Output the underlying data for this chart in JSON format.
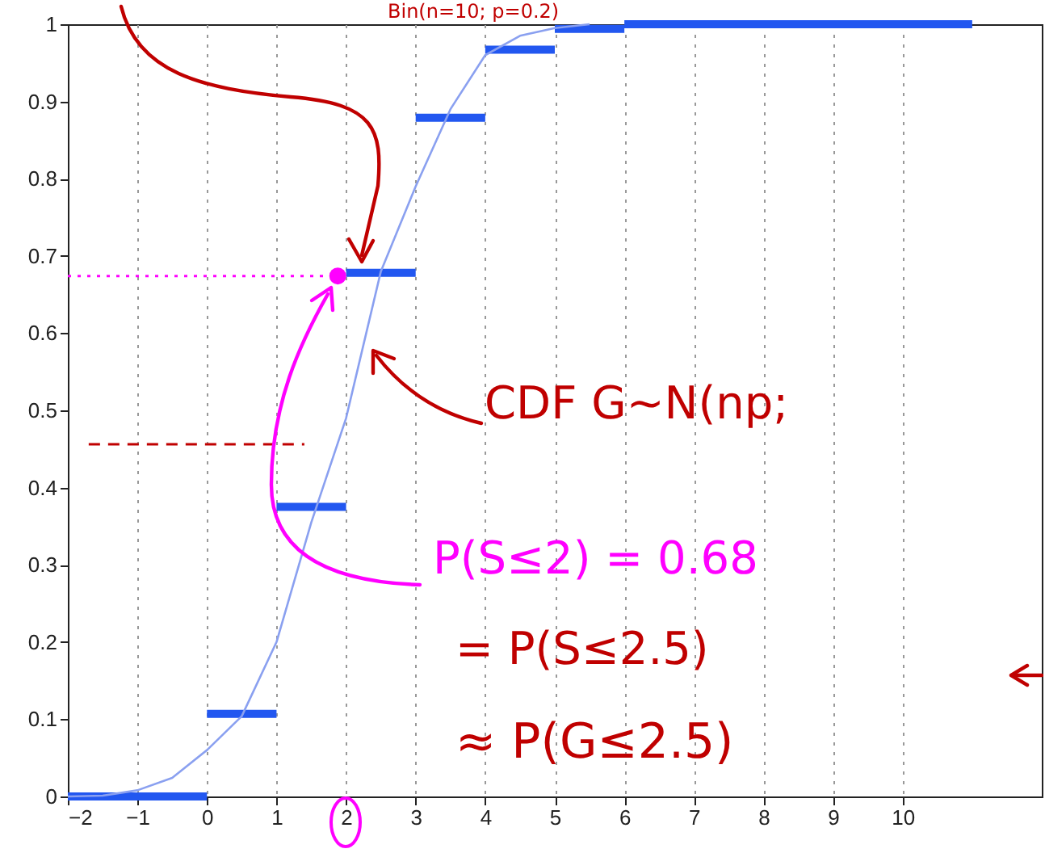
{
  "chart_data": {
    "type": "line",
    "xlim": [
      -2,
      12
    ],
    "xticks": [
      -2,
      -1,
      0,
      1,
      2,
      3,
      4,
      5,
      6,
      7,
      8,
      9,
      10
    ],
    "ylim": [
      0,
      1
    ],
    "yticks": [
      0,
      0.1,
      0.2,
      0.3,
      0.4,
      0.5,
      0.6,
      0.7,
      0.8,
      0.9,
      1
    ],
    "grid": "x",
    "series": [
      {
        "color": "#2257f0",
        "x": [
          -2,
          0,
          null,
          0,
          1,
          null,
          1,
          2,
          null,
          2,
          3,
          null,
          3,
          4,
          null,
          4,
          5,
          null,
          5,
          6,
          null,
          6,
          11
        ],
        "values": [
          0,
          0,
          null,
          0.107,
          0.107,
          null,
          0.375,
          0.375,
          null,
          0.678,
          0.678,
          null,
          0.879,
          0.879,
          null,
          0.967,
          0.967,
          null,
          0.994,
          0.994,
          null,
          1,
          1
        ]
      },
      {
        "color": "#8aa0f0",
        "x": [
          -2,
          -1.5,
          -1,
          -0.5,
          0,
          0.5,
          1,
          1.5,
          2,
          2.5,
          3,
          3.5,
          4,
          4.5,
          5,
          5.5
        ],
        "values": [
          0,
          0.001,
          0.008,
          0.024,
          0.06,
          0.104,
          0.2,
          0.355,
          0.49,
          0.68,
          0.79,
          0.89,
          0.96,
          0.985,
          0.995,
          1
        ]
      },
      {
        "type": "line",
        "color": "#ff00ff",
        "line_style": "dotted",
        "x": [
          -2,
          1.88
        ],
        "values": [
          0.674,
          0.674
        ]
      },
      {
        "type": "line",
        "color": "#c00000",
        "line_style": "dashed",
        "x": [
          -1.7,
          1.4
        ],
        "values": [
          0.456,
          0.456
        ]
      },
      {
        "type": "scatter",
        "color": "#ff00ff",
        "x": [
          1.88
        ],
        "values": [
          0.674
        ]
      }
    ],
    "annotations": [
      "Bin(n=10; p=0.2)",
      "CDF G~N(np;",
      "P(S≤2) = 0.68",
      "= P(S≤2.5)",
      "≈ P(G≤2.5)"
    ]
  }
}
